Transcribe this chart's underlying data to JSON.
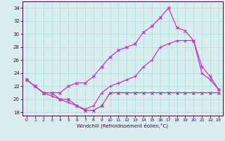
{
  "xlabel": "Windchill (Refroidissement éolien,°C)",
  "x": [
    0,
    1,
    2,
    3,
    4,
    5,
    6,
    7,
    8,
    9,
    10,
    11,
    12,
    13,
    14,
    15,
    16,
    17,
    18,
    19,
    20,
    21,
    22,
    23
  ],
  "line1": [
    23,
    22,
    21,
    21,
    20,
    20,
    19,
    18.3,
    18.3,
    19,
    21,
    21,
    21,
    21,
    21,
    21,
    21,
    21,
    21,
    21,
    21,
    21,
    21,
    21
  ],
  "line2": [
    23,
    22,
    21,
    20.5,
    20,
    19.5,
    19,
    18.5,
    19,
    21,
    22,
    22.5,
    23,
    23.5,
    25,
    26,
    28,
    28.5,
    29,
    29,
    29,
    24,
    23,
    21.5
  ],
  "line3": [
    23,
    22,
    21,
    21,
    21,
    22,
    22.5,
    22.5,
    23.5,
    25,
    26.5,
    27.5,
    28,
    28.5,
    30.3,
    31.2,
    32.5,
    34,
    31,
    30.5,
    29,
    25,
    23.5,
    21.5
  ],
  "line_color1": "#993399",
  "line_color2": "#cc33cc",
  "line_color3": "#cc33cc",
  "bg_color": "#d8eeee",
  "grid_color": "#aadddd",
  "ylim": [
    17.5,
    35.0
  ],
  "xlim": [
    -0.5,
    23.5
  ],
  "yticks": [
    18,
    20,
    22,
    24,
    26,
    28,
    30,
    32,
    34
  ],
  "xticks": [
    0,
    1,
    2,
    3,
    4,
    5,
    6,
    7,
    8,
    9,
    10,
    11,
    12,
    13,
    14,
    15,
    16,
    17,
    18,
    19,
    20,
    21,
    22,
    23
  ]
}
